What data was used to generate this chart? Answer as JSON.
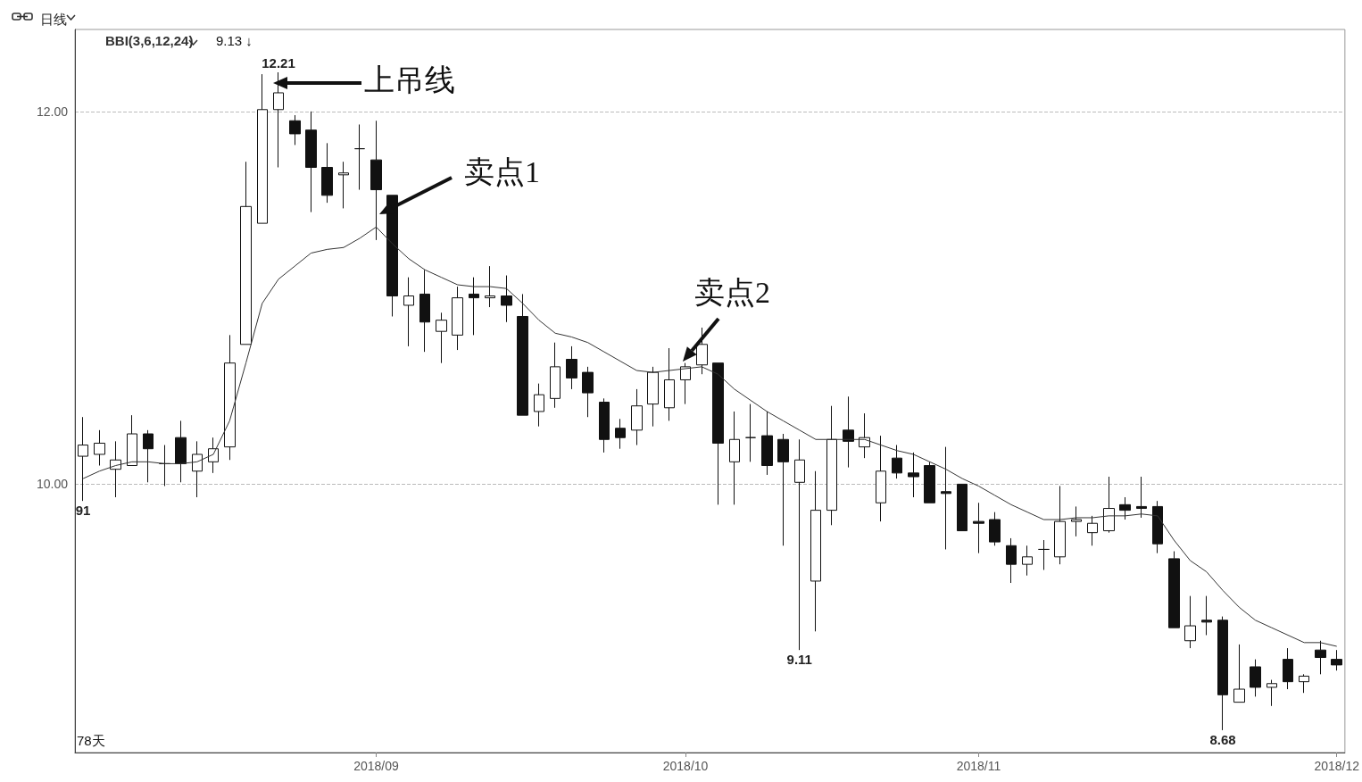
{
  "chart_data": {
    "type": "candlestick",
    "title": "日线",
    "categories": [
      null,
      null,
      null,
      null,
      null,
      null,
      null,
      null,
      null,
      null,
      null,
      null,
      null,
      null,
      null,
      null,
      null,
      null,
      "2018/09",
      null,
      null,
      null,
      null,
      null,
      null,
      null,
      null,
      null,
      null,
      null,
      null,
      null,
      null,
      null,
      null,
      null,
      null,
      "2018/10",
      null,
      null,
      null,
      null,
      null,
      null,
      null,
      null,
      null,
      null,
      null,
      null,
      null,
      null,
      null,
      null,
      null,
      "2018/11",
      null,
      null,
      null,
      null,
      null,
      null,
      null,
      null,
      null,
      null,
      null,
      null,
      null,
      null,
      null,
      null,
      null,
      null,
      null,
      null,
      null,
      "2018/12"
    ],
    "series": [
      {
        "color": "#111111",
        "ohlc": [
          [
            10.15,
            10.36,
            9.91,
            10.21
          ],
          [
            10.16,
            10.29,
            10.1,
            10.22
          ],
          [
            10.08,
            10.23,
            9.93,
            10.13
          ],
          [
            10.1,
            10.37,
            10.1,
            10.27
          ],
          [
            10.27,
            10.29,
            10.01,
            10.19
          ],
          [
            10.11,
            10.21,
            9.99,
            10.11
          ],
          [
            10.25,
            10.34,
            10.01,
            10.11
          ],
          [
            10.07,
            10.23,
            9.93,
            10.16
          ],
          [
            10.12,
            10.25,
            10.06,
            10.19
          ],
          [
            10.2,
            10.8,
            10.13,
            10.65
          ],
          [
            10.75,
            11.73,
            10.75,
            11.49
          ],
          [
            11.4,
            12.2,
            11.4,
            12.01
          ],
          [
            12.01,
            12.21,
            11.7,
            12.1
          ],
          [
            11.95,
            11.98,
            11.82,
            11.88
          ],
          [
            11.9,
            12.0,
            11.46,
            11.7
          ],
          [
            11.7,
            11.83,
            11.51,
            11.55
          ],
          [
            11.66,
            11.73,
            11.48,
            11.67
          ],
          [
            11.8,
            11.93,
            11.58,
            11.8
          ],
          [
            11.74,
            11.95,
            11.31,
            11.58
          ],
          [
            11.55,
            11.55,
            10.9,
            11.01
          ],
          [
            10.96,
            11.11,
            10.74,
            11.01
          ],
          [
            11.02,
            11.15,
            10.71,
            10.87
          ],
          [
            10.82,
            10.92,
            10.65,
            10.88
          ],
          [
            10.8,
            11.06,
            10.72,
            11.0
          ],
          [
            11.02,
            11.11,
            10.8,
            11.0
          ],
          [
            11.0,
            11.17,
            10.95,
            11.01
          ],
          [
            11.01,
            11.12,
            10.87,
            10.96
          ],
          [
            10.9,
            11.02,
            10.37,
            10.37
          ],
          [
            10.39,
            10.54,
            10.31,
            10.48
          ],
          [
            10.46,
            10.76,
            10.41,
            10.63
          ],
          [
            10.67,
            10.74,
            10.51,
            10.57
          ],
          [
            10.6,
            10.63,
            10.36,
            10.49
          ],
          [
            10.44,
            10.46,
            10.17,
            10.24
          ],
          [
            10.3,
            10.35,
            10.19,
            10.25
          ],
          [
            10.29,
            10.51,
            10.21,
            10.42
          ],
          [
            10.43,
            10.63,
            10.31,
            10.6
          ],
          [
            10.41,
            10.73,
            10.34,
            10.56
          ],
          [
            10.56,
            10.65,
            10.43,
            10.63
          ],
          [
            10.64,
            10.84,
            10.59,
            10.75
          ],
          [
            10.65,
            10.65,
            9.89,
            10.22
          ],
          [
            10.12,
            10.39,
            9.89,
            10.24
          ],
          [
            10.25,
            10.43,
            10.12,
            10.25
          ],
          [
            10.26,
            10.39,
            10.05,
            10.1
          ],
          [
            10.24,
            10.27,
            9.67,
            10.12
          ],
          [
            10.01,
            10.24,
            9.11,
            10.13
          ],
          [
            9.48,
            10.07,
            9.21,
            9.86
          ],
          [
            9.86,
            10.42,
            9.78,
            10.24
          ],
          [
            10.29,
            10.47,
            10.09,
            10.23
          ],
          [
            10.2,
            10.38,
            10.14,
            10.25
          ],
          [
            9.9,
            10.26,
            9.8,
            10.07
          ],
          [
            10.14,
            10.21,
            10.03,
            10.06
          ],
          [
            10.06,
            10.17,
            9.93,
            10.04
          ],
          [
            10.1,
            10.12,
            9.9,
            9.9
          ],
          [
            9.96,
            10.2,
            9.65,
            9.95
          ],
          [
            10.0,
            10.0,
            9.75,
            9.75
          ],
          [
            9.8,
            9.9,
            9.63,
            9.79
          ],
          [
            9.81,
            9.85,
            9.67,
            9.69
          ],
          [
            9.67,
            9.71,
            9.47,
            9.57
          ],
          [
            9.57,
            9.67,
            9.51,
            9.61
          ],
          [
            9.65,
            9.7,
            9.54,
            9.65
          ],
          [
            9.61,
            9.99,
            9.57,
            9.8
          ],
          [
            9.8,
            9.88,
            9.72,
            9.81
          ],
          [
            9.74,
            9.83,
            9.67,
            9.79
          ],
          [
            9.75,
            10.04,
            9.74,
            9.87
          ],
          [
            9.89,
            9.93,
            9.81,
            9.86
          ],
          [
            9.88,
            10.04,
            9.82,
            9.87
          ],
          [
            9.88,
            9.91,
            9.63,
            9.68
          ],
          [
            9.6,
            9.64,
            9.23,
            9.23
          ],
          [
            9.16,
            9.4,
            9.12,
            9.24
          ],
          [
            9.27,
            9.4,
            9.19,
            9.26
          ],
          [
            9.27,
            9.29,
            8.68,
            8.87
          ],
          [
            8.83,
            9.14,
            8.83,
            8.9
          ],
          [
            9.02,
            9.06,
            8.86,
            8.91
          ],
          [
            8.91,
            8.95,
            8.81,
            8.93
          ],
          [
            9.06,
            9.12,
            8.9,
            8.94
          ],
          [
            8.94,
            8.98,
            8.88,
            8.97
          ],
          [
            9.11,
            9.16,
            8.98,
            9.07
          ],
          [
            9.06,
            9.11,
            9.0,
            9.03
          ]
        ]
      },
      {
        "type": "line",
        "name": "BBI(3,6,12,24)",
        "color": "#333333",
        "values": [
          10.03,
          10.07,
          10.1,
          10.12,
          10.12,
          10.11,
          10.11,
          10.12,
          10.16,
          10.34,
          10.65,
          10.97,
          11.1,
          11.17,
          11.24,
          11.26,
          11.27,
          11.32,
          11.38,
          11.29,
          11.21,
          11.15,
          11.11,
          11.07,
          11.06,
          11.06,
          11.05,
          10.97,
          10.88,
          10.81,
          10.79,
          10.76,
          10.71,
          10.66,
          10.61,
          10.6,
          10.61,
          10.62,
          10.63,
          10.59,
          10.51,
          10.45,
          10.39,
          10.34,
          10.29,
          10.24,
          10.24,
          10.24,
          10.24,
          10.21,
          10.18,
          10.16,
          10.12,
          10.08,
          10.03,
          9.99,
          9.94,
          9.89,
          9.85,
          9.81,
          9.81,
          9.82,
          9.82,
          9.83,
          9.83,
          9.84,
          9.83,
          9.7,
          9.59,
          9.53,
          9.43,
          9.34,
          9.27,
          9.23,
          9.19,
          9.15,
          9.15,
          9.13
        ]
      }
    ],
    "ylim": [
      8.56,
      12.44
    ],
    "yticks": [
      {
        "value": 10,
        "label": "10.00"
      },
      {
        "value": 12,
        "label": "12.00"
      }
    ],
    "grid": "y",
    "legend": "top left",
    "marker": "none",
    "annotations": [
      "上吊线",
      "卖点1",
      "卖点2",
      "9.13 ↓",
      "78天",
      {
        "text": "12.21",
        "y": 12.21
      },
      {
        "text": "91",
        "y": 9.91
      },
      {
        "text": "9.11",
        "y": 9.11
      },
      {
        "text": "8.68",
        "y": 8.68
      }
    ]
  }
}
